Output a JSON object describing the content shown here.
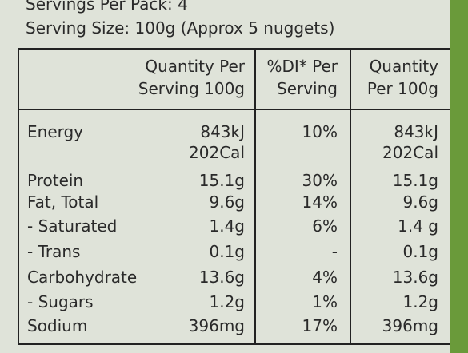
{
  "header": {
    "servings": "Servings Per Pack: 4",
    "serving_size": "Serving Size: 100g (Approx 5 nuggets)"
  },
  "table": {
    "columns": [
      [
        "Quantity Per",
        "Serving 100g"
      ],
      [
        "%DI* Per",
        "Serving"
      ],
      [
        "Quantity",
        "Per 100g"
      ]
    ],
    "rows": [
      [
        "Energy",
        [
          "843kJ",
          "202Cal"
        ],
        "10%",
        [
          "843kJ",
          "202Cal"
        ]
      ],
      [
        "Protein",
        "15.1g",
        "30%",
        "15.1g"
      ],
      [
        "Fat, Total",
        "9.6g",
        "14%",
        "9.6g"
      ],
      [
        "- Saturated",
        "1.4g",
        "6%",
        "1.4 g"
      ],
      [
        "- Trans",
        "0.1g",
        "-",
        "0.1g"
      ],
      [
        "Carbohydrate",
        "13.6g",
        "4%",
        "13.6g"
      ],
      [
        "- Sugars",
        "1.2g",
        "1%",
        "1.2g"
      ],
      [
        "Sodium",
        "396mg",
        "17%",
        "396mg"
      ]
    ]
  }
}
